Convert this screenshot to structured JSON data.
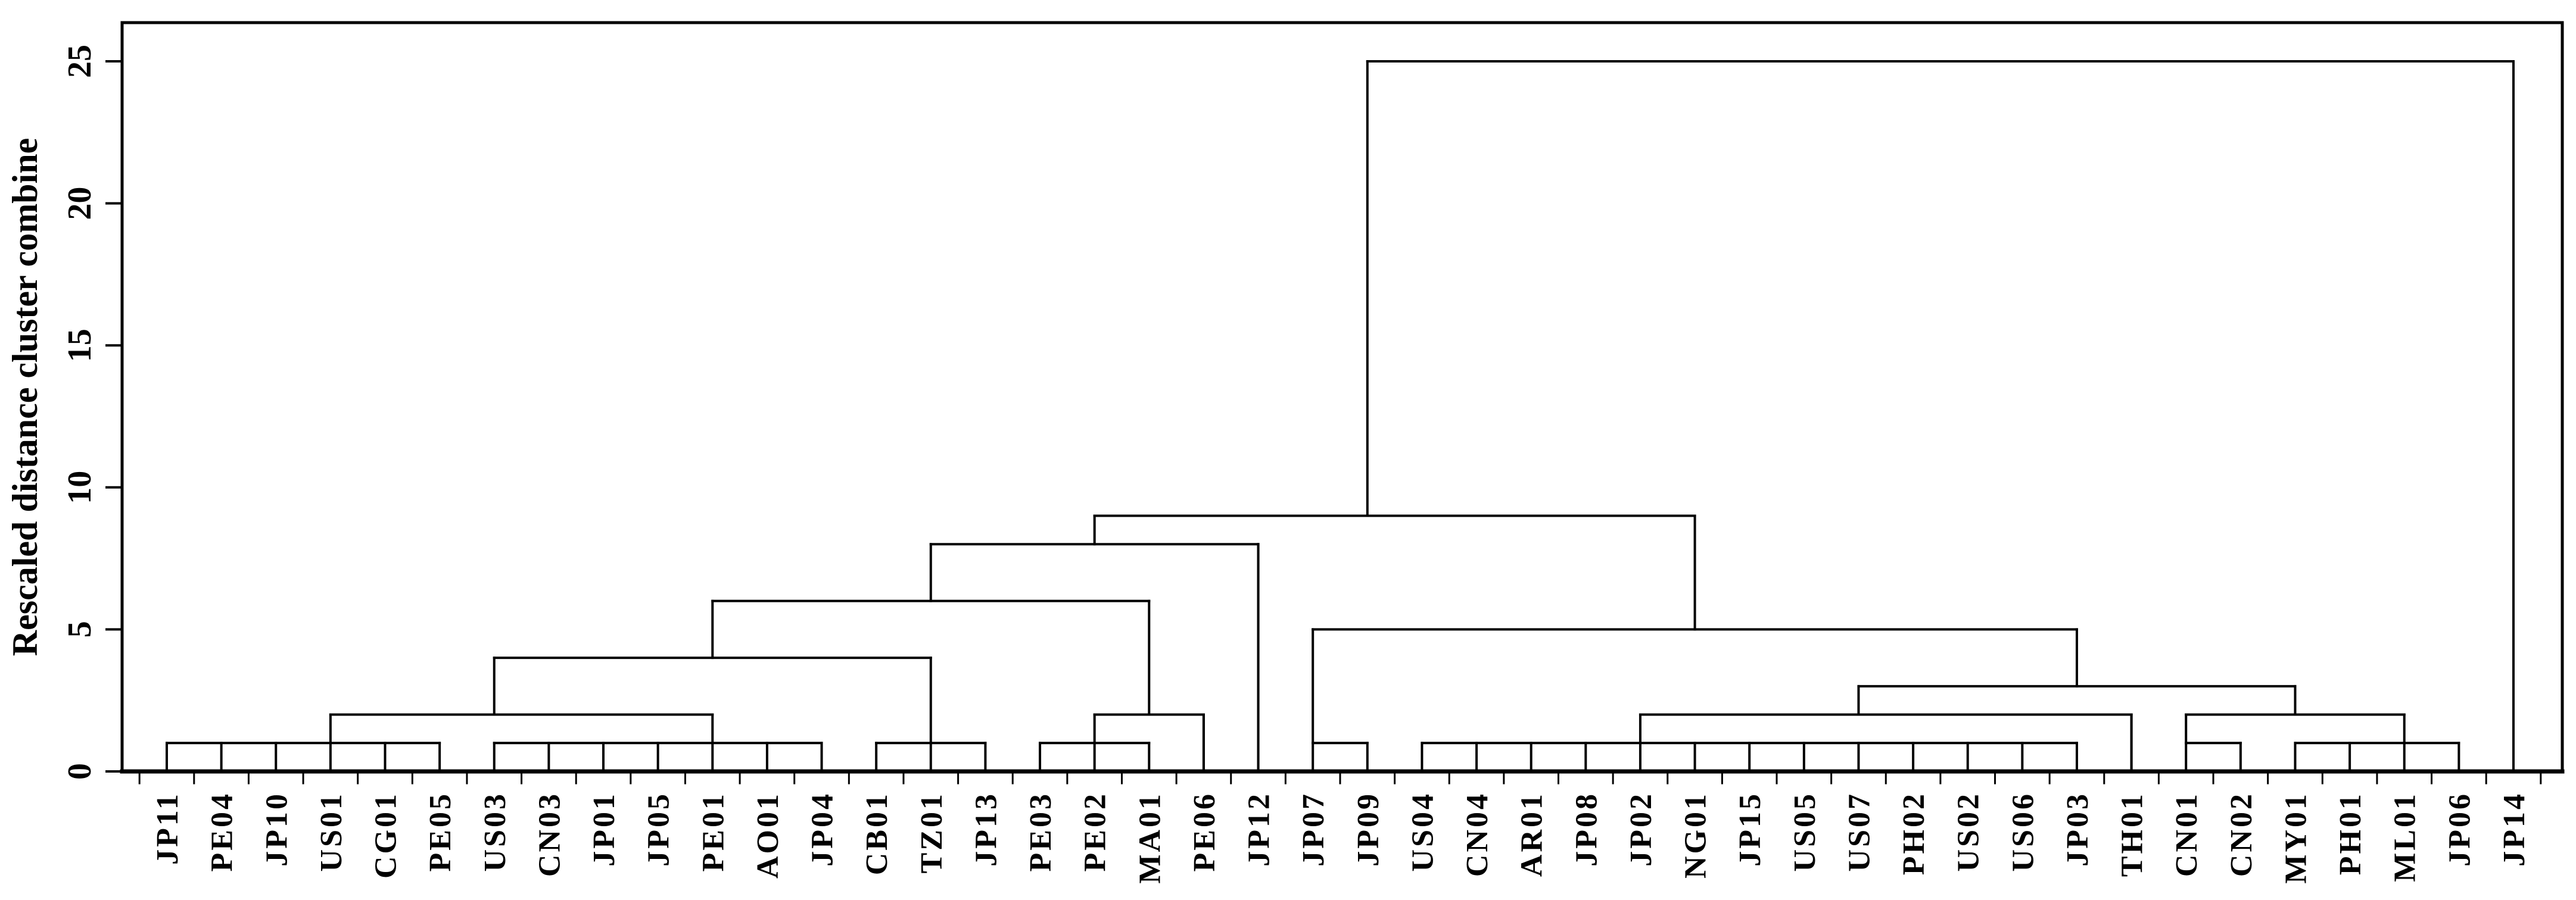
{
  "figure": {
    "background_color": "#ffffff",
    "line_color": "#000000"
  },
  "chart_data": {
    "type": "dendrogram",
    "title": "",
    "ylabel": "Rescaled distance cluster combine",
    "xlabel": "",
    "ylim": [
      0,
      25
    ],
    "yticks": [
      "0",
      "5",
      "10",
      "15",
      "20",
      "25"
    ],
    "ytick_values": [
      0,
      5,
      10,
      15,
      20,
      25
    ],
    "grid": "off",
    "legend": "none",
    "leaves": [
      "JP11",
      "PE04",
      "JP10",
      "US01",
      "CG01",
      "PE05",
      "US03",
      "CN03",
      "JP01",
      "JP05",
      "PE01",
      "AO01",
      "JP04",
      "CB01",
      "TZ01",
      "JP13",
      "PE03",
      "PE02",
      "MA01",
      "PE06",
      "JP12",
      "JP07",
      "JP09",
      "US04",
      "CN04",
      "AR01",
      "JP08",
      "JP02",
      "NG01",
      "JP15",
      "US05",
      "US07",
      "PH02",
      "US02",
      "US06",
      "JP03",
      "TH01",
      "CN01",
      "CN02",
      "MY01",
      "PH01",
      "ML01",
      "JP06",
      "JP14"
    ],
    "height1_clusters": [
      [
        "JP11",
        "PE04",
        "JP10",
        "US01",
        "CG01",
        "PE05"
      ],
      [
        "US03",
        "CN03",
        "JP01",
        "JP05",
        "PE01",
        "AO01",
        "JP04"
      ],
      [
        "CB01",
        "TZ01",
        "JP13"
      ],
      [
        "PE03",
        "PE02",
        "MA01"
      ],
      [
        "JP07",
        "JP09"
      ],
      [
        "US04",
        "CN04",
        "AR01",
        "JP08",
        "JP02",
        "NG01",
        "JP15",
        "US05",
        "US07",
        "PH02",
        "US02",
        "US06",
        "JP03"
      ],
      [
        "CN01",
        "CN02"
      ],
      [
        "MY01",
        "PH01",
        "ML01",
        "JP06"
      ]
    ],
    "leaf_direct_join_heights": {
      "PE06": 2,
      "JP12": 8,
      "TH01": 2,
      "JP14": 25
    },
    "joins": [
      {
        "height": 2,
        "left_at": "US01",
        "left_from": 1,
        "right_at": "PE01",
        "right_from": 1
      },
      {
        "height": 4,
        "left_at": "US03",
        "left_from": 2,
        "right_at": "TZ01",
        "right_from": 1
      },
      {
        "height": 2,
        "left_at": "PE02",
        "left_from": 1,
        "right_at": "PE06",
        "right_from": 0
      },
      {
        "height": 6,
        "left_at": "PE01",
        "left_from": 4,
        "right_at": "MA01",
        "right_from": 2
      },
      {
        "height": 8,
        "left_at": "TZ01",
        "left_from": 6,
        "right_at": "JP12",
        "right_from": 0
      },
      {
        "height": 9,
        "left_at": "PE02",
        "left_from": 8,
        "right_at": "NG01",
        "right_from": 5
      },
      {
        "height": 25,
        "left_at": "JP09",
        "left_from": 9,
        "right_at": "JP14",
        "right_from": 0
      },
      {
        "height": 2,
        "left_at": "JP02",
        "left_from": 1,
        "right_at": "TH01",
        "right_from": 0
      },
      {
        "height": 2,
        "left_at": "CN01",
        "left_from": 1,
        "right_at": "ML01",
        "right_from": 1
      },
      {
        "height": 3,
        "left_at": "US07",
        "left_from": 2,
        "right_at": "MY01",
        "right_from": 2
      },
      {
        "height": 5,
        "left_at": "JP07",
        "left_from": 1,
        "right_at": "JP03",
        "right_from": 3
      }
    ]
  }
}
